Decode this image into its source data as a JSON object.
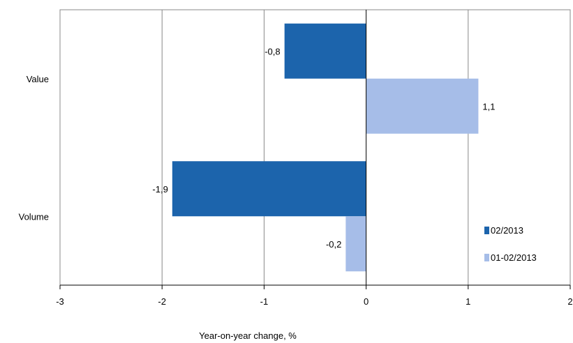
{
  "chart_data": {
    "type": "bar",
    "orientation": "horizontal",
    "categories": [
      "Value",
      "Volume"
    ],
    "series": [
      {
        "name": "02/2013",
        "color": "#1c64ac",
        "values": [
          -0.8,
          -1.9
        ],
        "labels": [
          "-0,8",
          "-1,9"
        ]
      },
      {
        "name": "01-02/2013",
        "color": "#a6bde8",
        "values": [
          1.1,
          -0.2
        ],
        "labels": [
          "1,1",
          "-0,2"
        ]
      }
    ],
    "xlim": [
      -3,
      2
    ],
    "xticks": [
      -3,
      -2,
      -1,
      0,
      1,
      2
    ],
    "xtick_labels": [
      "-3",
      "-2",
      "-1",
      "0",
      "1",
      "2"
    ],
    "xlabel": "Year-on-year change, %",
    "grid": "vertical",
    "legend": "bottom-right, inside plot"
  }
}
